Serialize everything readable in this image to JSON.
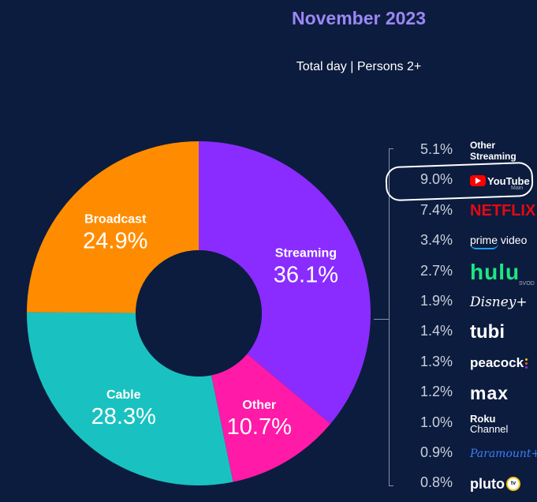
{
  "header": {
    "title": "November 2023",
    "subtitle": "Total day | Persons 2+"
  },
  "chart_data": {
    "type": "pie",
    "title": "November 2023",
    "subtitle": "Total day | Persons 2+",
    "donut": true,
    "slices": [
      {
        "name": "Streaming",
        "value": 36.1,
        "label": "36.1%",
        "color": "#8a2cff"
      },
      {
        "name": "Other",
        "value": 10.7,
        "label": "10.7%",
        "color": "#ff1aa8"
      },
      {
        "name": "Cable",
        "value": 28.3,
        "label": "28.3%",
        "color": "#19c2c0"
      },
      {
        "name": "Broadcast",
        "value": 24.9,
        "label": "24.9%",
        "color": "#ff8c00"
      }
    ],
    "streaming_breakdown": [
      {
        "name": "Other Streaming",
        "value": 5.1,
        "label": "5.1%",
        "logo": "other-streaming-text"
      },
      {
        "name": "YouTube",
        "value": 9.0,
        "label": "9.0%",
        "logo": "youtube-logo",
        "logo_text": "YouTube",
        "sub": "Main",
        "highlighted": true
      },
      {
        "name": "Netflix",
        "value": 7.4,
        "label": "7.4%",
        "logo": "netflix-logo",
        "logo_text": "NETFLIX"
      },
      {
        "name": "Prime Video",
        "value": 3.4,
        "label": "3.4%",
        "logo": "prime-video-logo",
        "logo_text": "prime video"
      },
      {
        "name": "Hulu",
        "value": 2.7,
        "label": "2.7%",
        "logo": "hulu-logo",
        "logo_text": "hulu",
        "sub": "SVOD"
      },
      {
        "name": "Disney+",
        "value": 1.9,
        "label": "1.9%",
        "logo": "disney-plus-logo",
        "logo_text": "Disney+"
      },
      {
        "name": "Tubi",
        "value": 1.4,
        "label": "1.4%",
        "logo": "tubi-logo",
        "logo_text": "tubi"
      },
      {
        "name": "Peacock",
        "value": 1.3,
        "label": "1.3%",
        "logo": "peacock-logo",
        "logo_text": "peacock"
      },
      {
        "name": "Max",
        "value": 1.2,
        "label": "1.2%",
        "logo": "max-logo",
        "logo_text": "max"
      },
      {
        "name": "Roku Channel",
        "value": 1.0,
        "label": "1.0%",
        "logo": "roku-channel-logo",
        "logo_text": "Roku",
        "sub": "Channel"
      },
      {
        "name": "Paramount+",
        "value": 0.9,
        "label": "0.9%",
        "logo": "paramount-plus-logo",
        "logo_text": "Paramount+"
      },
      {
        "name": "Pluto TV",
        "value": 0.8,
        "label": "0.8%",
        "logo": "pluto-tv-logo",
        "logo_text": "pluto",
        "sub": "tv"
      }
    ]
  },
  "other_streaming": {
    "line1": "Other",
    "line2": "Streaming"
  },
  "colors": {
    "background": "#0c1c3e",
    "title": "#9b87f5",
    "highlight": "#ffffff"
  }
}
